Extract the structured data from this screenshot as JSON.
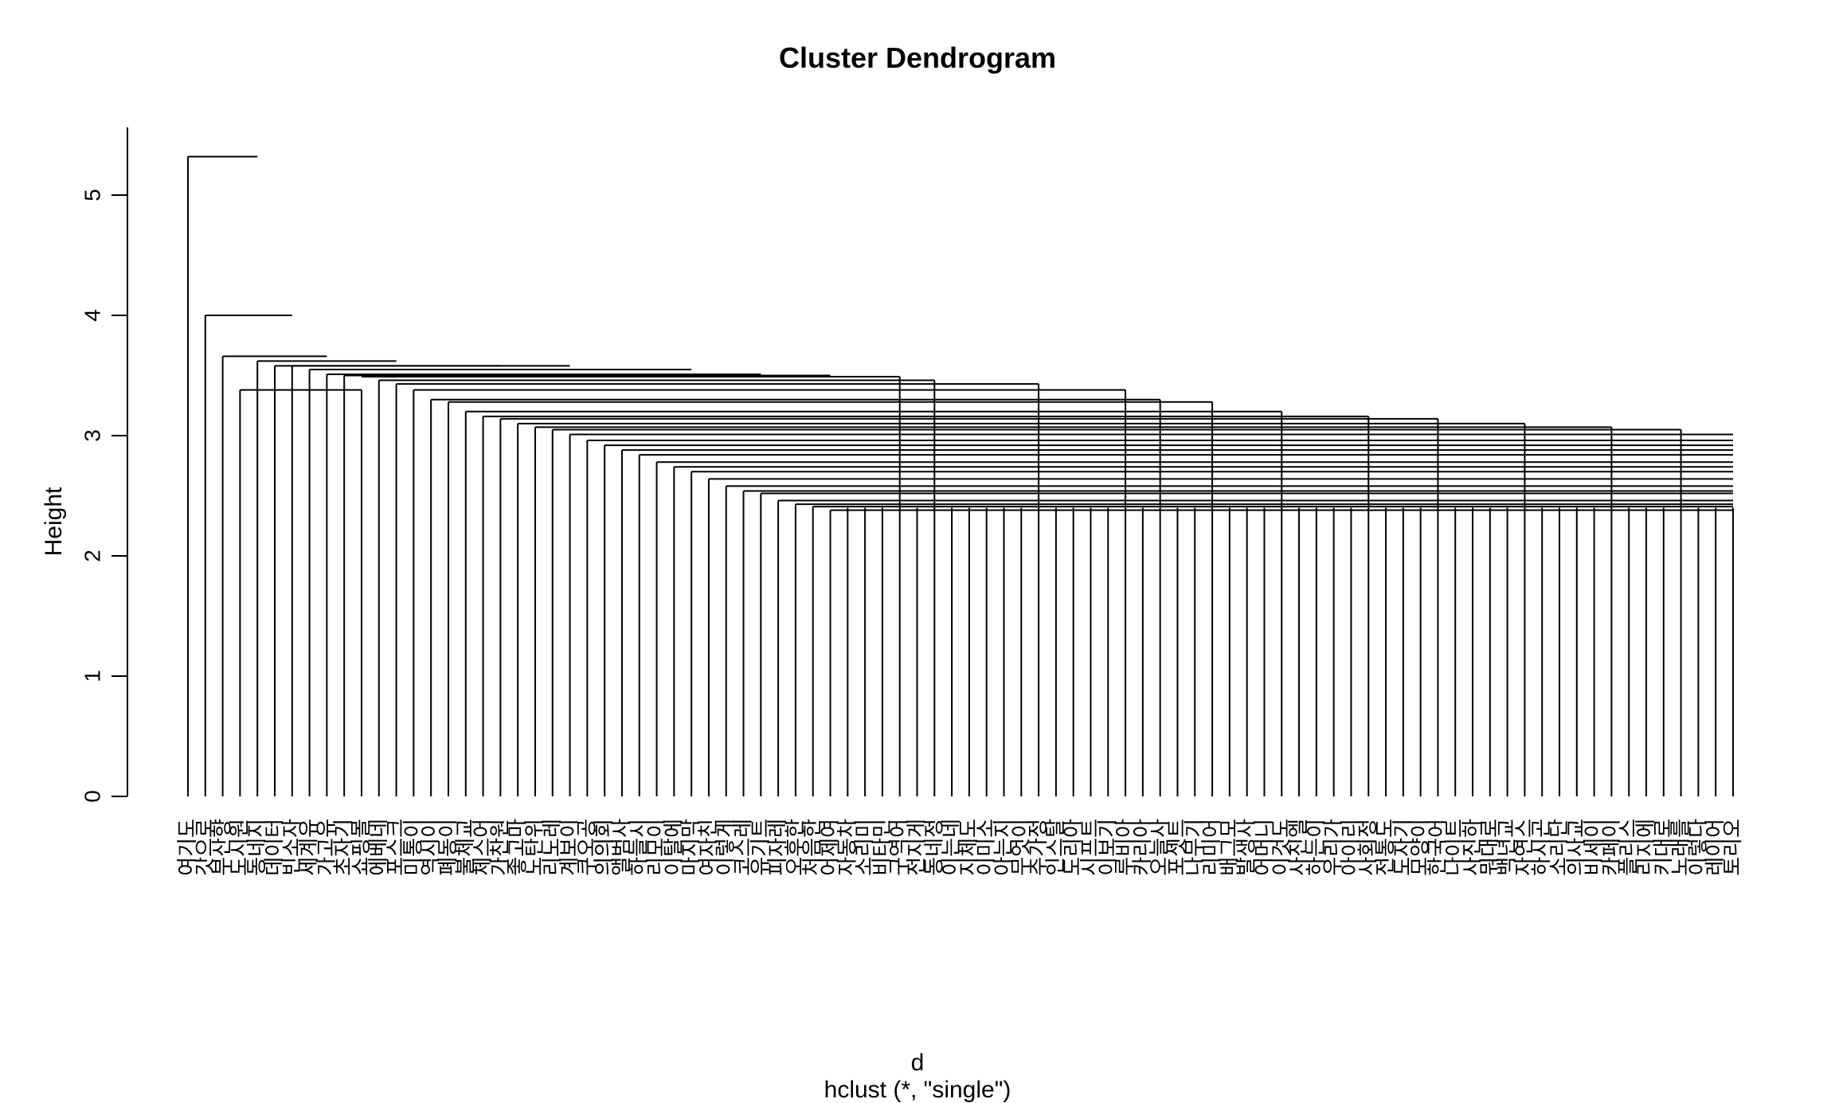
{
  "chart_data": {
    "type": "dendrogram",
    "title": "Cluster Dendrogram",
    "xlabel": "d",
    "subtitle": "hclust (*, \"single\")",
    "ylabel": "Height",
    "ylim": [
      0,
      5.5
    ],
    "yticks": [
      0,
      1,
      2,
      3,
      4,
      5
    ],
    "merges": [
      {
        "x1": 1,
        "x2": 5,
        "h": 5.32
      },
      {
        "x1": 2,
        "x2": 7,
        "h": 4.0
      },
      {
        "x1": 3,
        "x2": 9,
        "h": 3.66
      },
      {
        "x1": 4,
        "x2": 11,
        "h": 3.38
      },
      {
        "x1": 5,
        "x2": 13,
        "h": 3.62
      },
      {
        "x1": 6,
        "x2": 19,
        "h": 3.58
      },
      {
        "x1": 7,
        "x2": 23,
        "h": 3.58
      },
      {
        "x1": 8,
        "x2": 30,
        "h": 3.55
      },
      {
        "x1": 9,
        "x2": 34,
        "h": 3.51
      },
      {
        "x1": 10,
        "x2": 38,
        "h": 3.5
      },
      {
        "x1": 11,
        "x2": 42,
        "h": 3.49
      },
      {
        "x1": 12,
        "x2": 44,
        "h": 3.46
      },
      {
        "x1": 13,
        "x2": 50,
        "h": 3.43
      },
      {
        "x1": 14,
        "x2": 55,
        "h": 3.38
      },
      {
        "x1": 15,
        "x2": 57,
        "h": 3.3
      },
      {
        "x1": 16,
        "x2": 60,
        "h": 3.28
      },
      {
        "x1": 17,
        "x2": 64,
        "h": 3.2
      },
      {
        "x1": 18,
        "x2": 69,
        "h": 3.16
      },
      {
        "x1": 19,
        "x2": 73,
        "h": 3.14
      },
      {
        "x1": 20,
        "x2": 78,
        "h": 3.1
      },
      {
        "x1": 21,
        "x2": 83,
        "h": 3.07
      },
      {
        "x1": 22,
        "x2": 87,
        "h": 3.05
      },
      {
        "x1": 23,
        "x2": 92,
        "h": 3.01
      },
      {
        "x1": 24,
        "x2": 97,
        "h": 2.96
      },
      {
        "x1": 25,
        "x2": 99,
        "h": 2.92
      },
      {
        "x1": 26,
        "x2": 102,
        "h": 2.88
      },
      {
        "x1": 27,
        "x2": 106,
        "h": 2.84
      },
      {
        "x1": 28,
        "x2": 110,
        "h": 2.78
      },
      {
        "x1": 29,
        "x2": 115,
        "h": 2.74
      },
      {
        "x1": 30,
        "x2": 120,
        "h": 2.7
      },
      {
        "x1": 31,
        "x2": 124,
        "h": 2.64
      },
      {
        "x1": 32,
        "x2": 128,
        "h": 2.58
      },
      {
        "x1": 33,
        "x2": 131,
        "h": 2.54
      },
      {
        "x1": 34,
        "x2": 134,
        "h": 2.52
      },
      {
        "x1": 35,
        "x2": 137,
        "h": 2.46
      },
      {
        "x1": 36,
        "x2": 140,
        "h": 2.43
      },
      {
        "x1": 37,
        "x2": 143,
        "h": 2.41
      },
      {
        "x1": 38,
        "x2": 146,
        "h": 2.38
      }
    ],
    "leaf_labels": [
      "여기도",
      "갓으로",
      "부산향",
      "도시원",
      "동네지",
      "데이터",
      "빈소자",
      "세계유",
      "가고유",
      "초자기",
      "쇼핑몰",
      "에베네",
      "포스크",
      "미통이",
      "역시이",
      "폐동이",
      "불체교",
      "체스어",
      "가찬원",
      "좋고마",
      "노탄위",
      "리노레",
      "계보이",
      "쿠오공",
      "의의회",
      "앨범사",
      "하늘시",
      "리모이",
      "이탈에",
      "마지막",
      "여자친",
      "이렇게",
      "코스레",
      "유기트",
      "피자레",
      "오후한",
      "처음한",
      "어제여",
      "자동차",
      "소리미",
      "비타민",
      "구역어",
      "전지게",
      "동네정",
      "이는네",
      "지체도",
      "이미소",
      "아는지",
      "무엇이",
      "추가정",
      "인스탈",
      "도리아",
      "시프트",
      "이보기",
      "루비아",
      "카리아",
      "오늘사",
      "포셋트",
      "나무기",
      "리미어",
      "배그모",
      "발생사",
      "어머니",
      "이것도",
      "사진엘",
      "하는이",
      "우리가",
      "아이리",
      "사회정",
      "전통도",
      "도자기",
      "모양이",
      "한국어",
      "나이트",
      "사진하",
      "뭐대로",
      "백년교",
      "자연스",
      "하시곤",
      "소리단",
      "의사교",
      "비세이",
      "카페이",
      "플리스",
      "리지에",
      "키대로",
      "노래를",
      "이렇다",
      "레이어",
      "토리오"
    ]
  }
}
